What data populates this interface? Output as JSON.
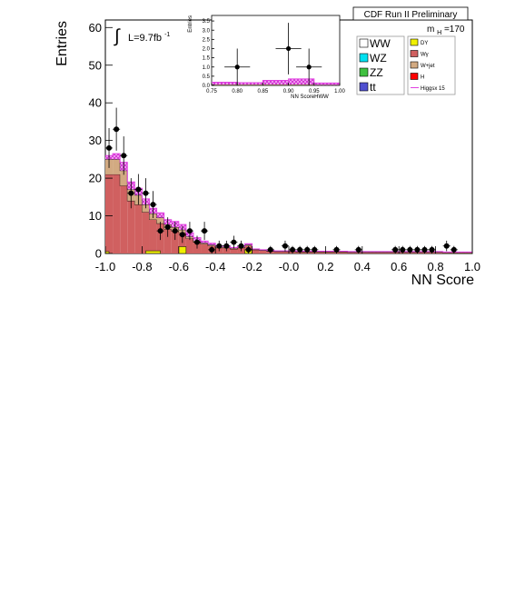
{
  "chart_data": [
    {
      "type": "bar",
      "xlabel": "NN Score",
      "ylabel": "Entries",
      "xlim": [
        -1.0,
        1.0
      ],
      "ylim": [
        0,
        62
      ],
      "xticks": [
        "-1.0",
        "-0.8",
        "-0.6",
        "-0.4",
        "-0.2",
        "-0.0",
        "0.2",
        "0.4",
        "0.6",
        "0.8",
        "1.0"
      ],
      "yticks": [
        "0",
        "10",
        "20",
        "30",
        "40",
        "50",
        "60"
      ],
      "annotations": {
        "preliminary": "CDF Run II Preliminary",
        "lumi_integral": "∫",
        "lumi": "L=9.7fb",
        "lumi_exp": "-1",
        "mass_m": "m",
        "mass_sub": "H",
        "mass_val": "=170"
      },
      "bin_edges": [
        -1.0,
        -0.96,
        -0.92,
        -0.88,
        -0.84,
        -0.8,
        -0.76,
        -0.72,
        -0.68,
        -0.64,
        -0.6,
        -0.56,
        -0.52,
        -0.48,
        -0.44,
        -0.4,
        -0.36,
        -0.32,
        -0.28,
        -0.24,
        -0.2,
        -0.16,
        -0.12,
        -0.08,
        -0.04,
        0.0,
        0.04,
        0.08,
        0.12,
        0.16,
        0.2,
        0.24,
        0.28,
        0.32,
        0.36,
        0.4,
        0.44,
        0.48,
        0.52,
        0.56,
        0.6,
        0.64,
        0.68,
        0.72,
        0.76,
        0.8,
        0.84,
        0.88,
        0.92,
        0.96,
        1.0
      ],
      "series": [
        {
          "name": "Wγ",
          "color": "#d06060",
          "values": [
            21,
            21,
            18,
            14,
            13,
            11,
            9,
            8,
            6.5,
            6,
            5.5,
            4,
            3,
            2.5,
            2,
            1.5,
            1.5,
            1.2,
            1.5,
            2,
            1,
            0.8,
            0.6,
            0.5,
            0.5,
            0.5,
            0.4,
            0.4,
            0.4,
            0.4,
            0.4,
            0.4,
            0.4,
            0.3,
            0.3,
            0.3,
            0.3,
            0.3,
            0.3,
            0.3,
            0.3,
            0.3,
            0.3,
            0.3,
            0.3,
            0.3,
            0.2,
            0.2,
            0.2,
            0.2
          ]
        },
        {
          "name": "W+jet",
          "color": "#d2aa82",
          "values": [
            4,
            4,
            4,
            3,
            2.5,
            2,
            1.6,
            1.5,
            1.2,
            1,
            0.8,
            0.5,
            0.4,
            0.3,
            0.3,
            0.2,
            0.2,
            0.2,
            0.2,
            0.3,
            0.1,
            0.1,
            0.1,
            0.1,
            0.1,
            0.1,
            0.1,
            0.1,
            0.1,
            0.1,
            0.1,
            0.1,
            0.1,
            0.1,
            0.1,
            0.1,
            0.1,
            0.1,
            0.1,
            0.1,
            0.1,
            0.1,
            0.1,
            0.1,
            0.1,
            0.1,
            0.1,
            0.1,
            0.1,
            0.1
          ]
        },
        {
          "name": "Higgsx 15",
          "color": "#e040e0",
          "values": [
            1,
            1.5,
            2.2,
            2,
            1.8,
            1.5,
            1.4,
            1.3,
            1.3,
            1.5,
            1.4,
            1,
            0.8,
            0.5,
            0.4,
            0.3,
            0.3,
            0.2,
            0.2,
            0.3,
            0.1,
            0.1,
            0.1,
            0.1,
            0.1,
            0.1,
            0.1,
            0.1,
            0.1,
            0.1,
            0.1,
            0.1,
            0.1,
            0.1,
            0.1,
            0.1,
            0.1,
            0.1,
            0.1,
            0.1,
            0.1,
            0.1,
            0.1,
            0.1,
            0.1,
            0.1,
            0.1,
            0.1,
            0.1,
            0.1
          ]
        },
        {
          "name": "DY",
          "color": "#f0f000",
          "bins": [
            [
              -1.0,
              -0.98,
              0.5
            ],
            [
              -0.78,
              -0.7,
              0.7
            ],
            [
              -0.6,
              -0.56,
              1.8
            ],
            [
              -0.24,
              -0.2,
              1.0
            ]
          ]
        }
      ],
      "data_points": [
        {
          "x": -0.98,
          "y": 28,
          "err": 5.3
        },
        {
          "x": -0.94,
          "y": 33,
          "err": 5.7
        },
        {
          "x": -0.9,
          "y": 26,
          "err": 5.1
        },
        {
          "x": -0.86,
          "y": 16,
          "err": 4.0
        },
        {
          "x": -0.82,
          "y": 17,
          "err": 4.1
        },
        {
          "x": -0.78,
          "y": 16,
          "err": 4.0
        },
        {
          "x": -0.74,
          "y": 13,
          "err": 3.6
        },
        {
          "x": -0.7,
          "y": 6,
          "err": 2.4
        },
        {
          "x": -0.66,
          "y": 7,
          "err": 2.6
        },
        {
          "x": -0.62,
          "y": 6,
          "err": 2.4
        },
        {
          "x": -0.58,
          "y": 5,
          "err": 2.2
        },
        {
          "x": -0.54,
          "y": 6,
          "err": 2.4
        },
        {
          "x": -0.5,
          "y": 3,
          "err": 1.7
        },
        {
          "x": -0.46,
          "y": 6,
          "err": 2.4
        },
        {
          "x": -0.42,
          "y": 1,
          "err": 1.0
        },
        {
          "x": -0.38,
          "y": 2,
          "err": 1.4
        },
        {
          "x": -0.34,
          "y": 2,
          "err": 1.4
        },
        {
          "x": -0.3,
          "y": 3,
          "err": 1.7
        },
        {
          "x": -0.26,
          "y": 2,
          "err": 1.4
        },
        {
          "x": -0.22,
          "y": 1,
          "err": 1.0
        },
        {
          "x": -0.1,
          "y": 1,
          "err": 1.0
        },
        {
          "x": -0.02,
          "y": 2,
          "err": 1.4
        },
        {
          "x": 0.02,
          "y": 1,
          "err": 1.0
        },
        {
          "x": 0.06,
          "y": 1,
          "err": 1.0
        },
        {
          "x": 0.1,
          "y": 1,
          "err": 1.0
        },
        {
          "x": 0.14,
          "y": 1,
          "err": 1.0
        },
        {
          "x": 0.26,
          "y": 1,
          "err": 1.0
        },
        {
          "x": 0.38,
          "y": 1,
          "err": 1.0
        },
        {
          "x": 0.58,
          "y": 1,
          "err": 1.0
        },
        {
          "x": 0.62,
          "y": 1,
          "err": 1.0
        },
        {
          "x": 0.66,
          "y": 1,
          "err": 1.0
        },
        {
          "x": 0.7,
          "y": 1,
          "err": 1.0
        },
        {
          "x": 0.74,
          "y": 1,
          "err": 1.0
        },
        {
          "x": 0.78,
          "y": 1,
          "err": 1.0
        },
        {
          "x": 0.86,
          "y": 2,
          "err": 1.4
        },
        {
          "x": 0.9,
          "y": 1,
          "err": 1.0
        }
      ],
      "legend": {
        "placement": "top-right",
        "col1": [
          {
            "label": "WW",
            "color": "#ffffff"
          },
          {
            "label": "WZ",
            "color": "#00e0f0"
          },
          {
            "label": "ZZ",
            "color": "#40c040"
          },
          {
            "label": "tt",
            "color": "#5050d0"
          }
        ],
        "col2": [
          {
            "label": "DY",
            "color": "#f0f000"
          },
          {
            "label": "Wγ",
            "color": "#d06060"
          },
          {
            "label": "W+jet",
            "color": "#d2aa82"
          },
          {
            "label": "H",
            "color": "#ff0000"
          },
          {
            "label": "Higgsx 15",
            "color": "#e040e0",
            "line": true
          }
        ]
      }
    },
    {
      "type": "bar",
      "xlabel": "NN ScoreHWW",
      "ylabel": "Entries",
      "xlim": [
        0.75,
        1.0
      ],
      "ylim": [
        0,
        3.8
      ],
      "xticks": [
        "0.75",
        "0.80",
        "0.85",
        "0.90",
        "0.95",
        "1.00"
      ],
      "yticks": [
        "0.0",
        "0.5",
        "1.0",
        "1.5",
        "2.0",
        "2.5",
        "3.0",
        "3.5"
      ],
      "bin_edges": [
        0.75,
        0.8,
        0.85,
        0.9,
        0.95,
        1.0
      ],
      "series": [
        {
          "name": "W+jet",
          "color": "#d2aa82",
          "values": [
            0.05,
            0.05,
            0.05,
            0.05,
            0.03
          ]
        },
        {
          "name": "Higgsx 15",
          "color": "#e040e0",
          "values": [
            0.12,
            0.1,
            0.22,
            0.3,
            0.1
          ]
        }
      ],
      "data_points": [
        {
          "x": 0.8,
          "y": 1,
          "err": 1.0
        },
        {
          "x": 0.9,
          "y": 2,
          "err": 1.4
        },
        {
          "x": 0.94,
          "y": 1,
          "err": 1.0
        }
      ]
    }
  ]
}
